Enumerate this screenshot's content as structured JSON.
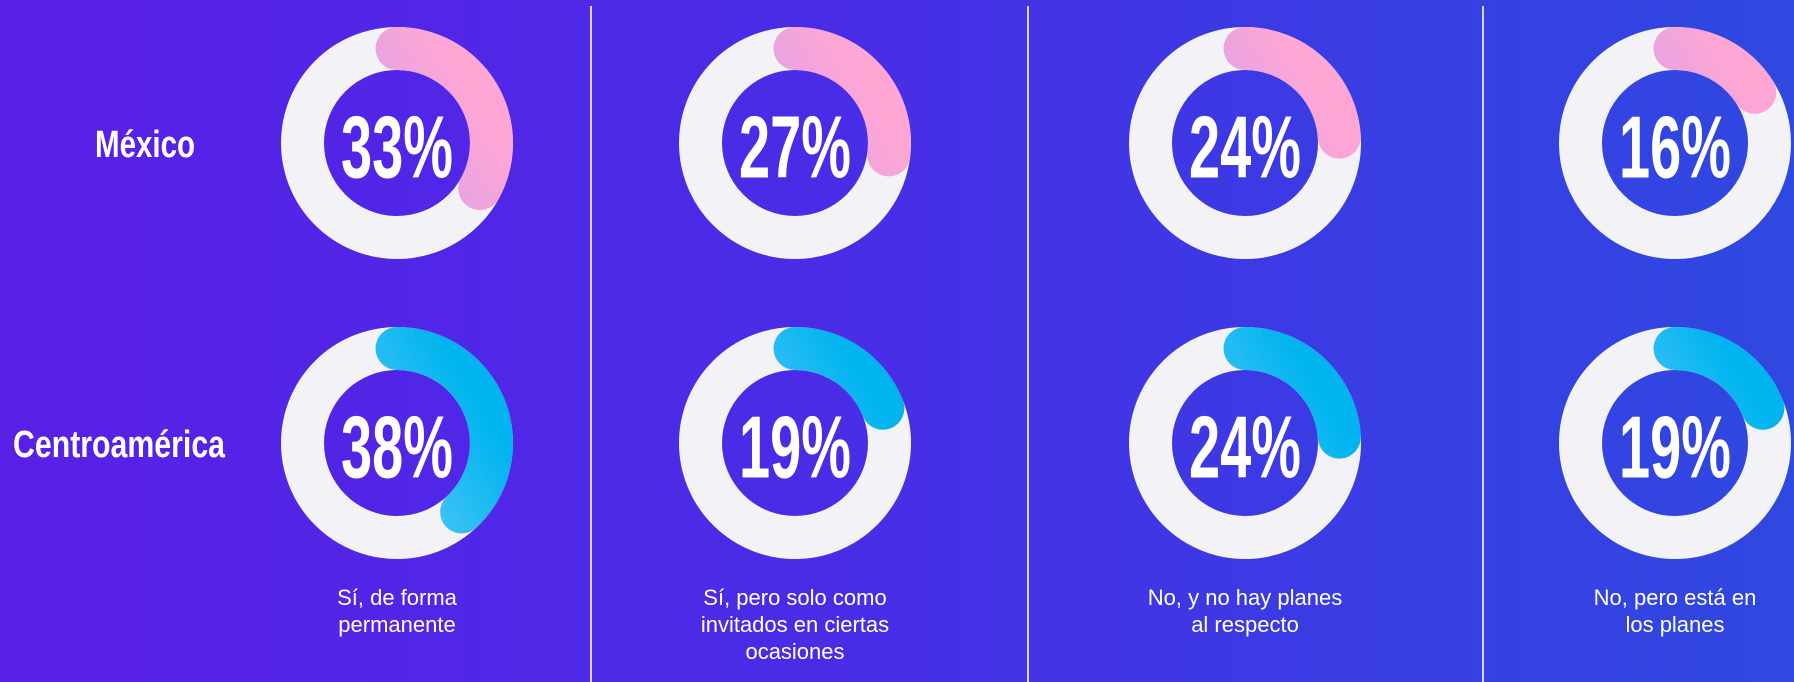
{
  "chart_data": {
    "type": "donut",
    "categories": [
      "Sí, de forma permanente",
      "Sí, pero solo como invitados en ciertas ocasiones",
      "No, y no hay planes al respecto",
      "No, pero está en los planes"
    ],
    "series": [
      {
        "name": "México",
        "colors": [
          "#b49dff",
          "#ffa6d4"
        ],
        "values": [
          33,
          27,
          24,
          16
        ],
        "value_labels": [
          "33%",
          "27%",
          "24%",
          "16%"
        ]
      },
      {
        "name": "Centroamérica",
        "colors": [
          "#8fd4ff",
          "#00b4ef"
        ],
        "values": [
          38,
          19,
          24,
          19
        ],
        "value_labels": [
          "38%",
          "19%",
          "24%",
          "19%"
        ]
      }
    ]
  }
}
